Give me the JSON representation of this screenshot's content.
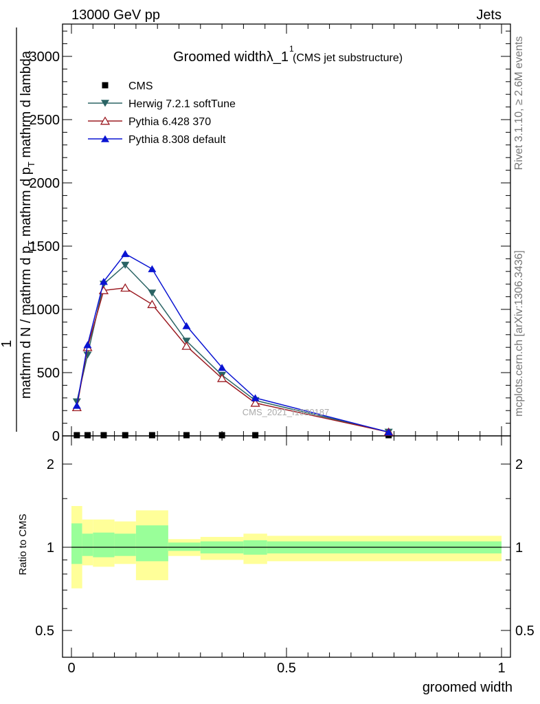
{
  "header": {
    "left": "13000 GeV pp",
    "right": "Jets"
  },
  "side_labels": {
    "rivet": "Rivet 3.1.10, ≥ 2.6M events",
    "mcplots": "mcplots.cern.ch [arXiv:1306.3436]"
  },
  "watermark": "CMS_2021_I1920187",
  "colors": {
    "cms": "#000000",
    "herwig": "#2a6464",
    "pythia6": "#9b1b22",
    "pythia8": "#0a14d2",
    "band_outer": "#ffff99",
    "band_inner": "#99ff99"
  },
  "chart_data": [
    {
      "type": "line",
      "title": "Groomed widthλ_1",
      "title_sup": "1",
      "subtitle": "(CMS jet substructure)",
      "ylabel_num": "1",
      "ylabel_den": "mathrm d N / mathrm d p_T mathrm d p_T mathrm d lambda",
      "ylabel_den_lines": [
        "mathrm d N / mathrm d p",
        "mathrm d p",
        "mathrm d lambda"
      ],
      "ylabel_sub": "T",
      "ylabel_mid": "mathrm d",
      "ylabel_top": "mathrm d",
      "ylabel_num_text": "mathrm d",
      "ylabel_num_sup": "2",
      "ylabel_num_N": "N",
      "xlim": [
        0,
        1
      ],
      "ylim": [
        0,
        3250
      ],
      "yticks": [
        0,
        500,
        1000,
        1500,
        2000,
        2500,
        3000
      ],
      "yticklabels": [
        "0",
        "500",
        "1000",
        "1500",
        "2000",
        "2500",
        "3000"
      ],
      "legend_position": "top-left",
      "series": [
        {
          "name": "CMS",
          "marker": "square",
          "x": [
            0.0125,
            0.0375,
            0.075,
            0.125,
            0.1875,
            0.2675,
            0.35,
            0.4275,
            0.7375
          ],
          "values": [
            0,
            0,
            0,
            0,
            0,
            0,
            0,
            0,
            0
          ]
        },
        {
          "name": "Herwig 7.2.1 softTune",
          "marker": "triangle-down",
          "x": [
            0.0125,
            0.0375,
            0.075,
            0.125,
            0.1875,
            0.2675,
            0.35,
            0.4275,
            0.7375
          ],
          "values": [
            270,
            640,
            1200,
            1350,
            1130,
            750,
            480,
            280,
            30
          ]
        },
        {
          "name": "Pythia 6.428 370",
          "marker": "triangle-up-open",
          "x": [
            0.0125,
            0.0375,
            0.075,
            0.125,
            0.1875,
            0.2675,
            0.35,
            0.4275,
            0.7375
          ],
          "values": [
            225,
            700,
            1150,
            1170,
            1040,
            710,
            455,
            260,
            30
          ]
        },
        {
          "name": "Pythia 8.308 default",
          "marker": "triangle-up",
          "x": [
            0.0125,
            0.0375,
            0.075,
            0.125,
            0.1875,
            0.2675,
            0.35,
            0.4275,
            0.7375
          ],
          "values": [
            240,
            720,
            1220,
            1440,
            1320,
            870,
            540,
            300,
            30
          ]
        }
      ]
    },
    {
      "type": "area",
      "ylabel": "Ratio to CMS",
      "xlabel": "groomed width",
      "xlim": [
        0,
        1
      ],
      "xticks": [
        0,
        0.5,
        1
      ],
      "xticklabels": [
        "0",
        "0.5",
        "1"
      ],
      "ylim": [
        0.4,
        2.3
      ],
      "yticks": [
        0.5,
        1,
        2
      ],
      "yticklabels": [
        "0.5",
        "1",
        "2"
      ],
      "bins": [
        {
          "lo": 0.0,
          "hi": 0.025,
          "outer": [
            0.71,
            1.41
          ],
          "inner": [
            0.87,
            1.22
          ]
        },
        {
          "lo": 0.025,
          "hi": 0.05,
          "outer": [
            0.86,
            1.26
          ],
          "inner": [
            0.93,
            1.12
          ]
        },
        {
          "lo": 0.05,
          "hi": 0.1,
          "outer": [
            0.85,
            1.26
          ],
          "inner": [
            0.92,
            1.13
          ]
        },
        {
          "lo": 0.1,
          "hi": 0.15,
          "outer": [
            0.87,
            1.24
          ],
          "inner": [
            0.93,
            1.12
          ]
        },
        {
          "lo": 0.15,
          "hi": 0.225,
          "outer": [
            0.76,
            1.36
          ],
          "inner": [
            0.89,
            1.2
          ]
        },
        {
          "lo": 0.225,
          "hi": 0.3,
          "outer": [
            0.93,
            1.07
          ],
          "inner": [
            0.97,
            1.04
          ]
        },
        {
          "lo": 0.3,
          "hi": 0.4,
          "outer": [
            0.9,
            1.09
          ],
          "inner": [
            0.95,
            1.05
          ]
        },
        {
          "lo": 0.4,
          "hi": 0.455,
          "outer": [
            0.87,
            1.12
          ],
          "inner": [
            0.94,
            1.06
          ]
        },
        {
          "lo": 0.455,
          "hi": 1.0,
          "outer": [
            0.89,
            1.1
          ],
          "inner": [
            0.95,
            1.05
          ]
        }
      ]
    }
  ]
}
